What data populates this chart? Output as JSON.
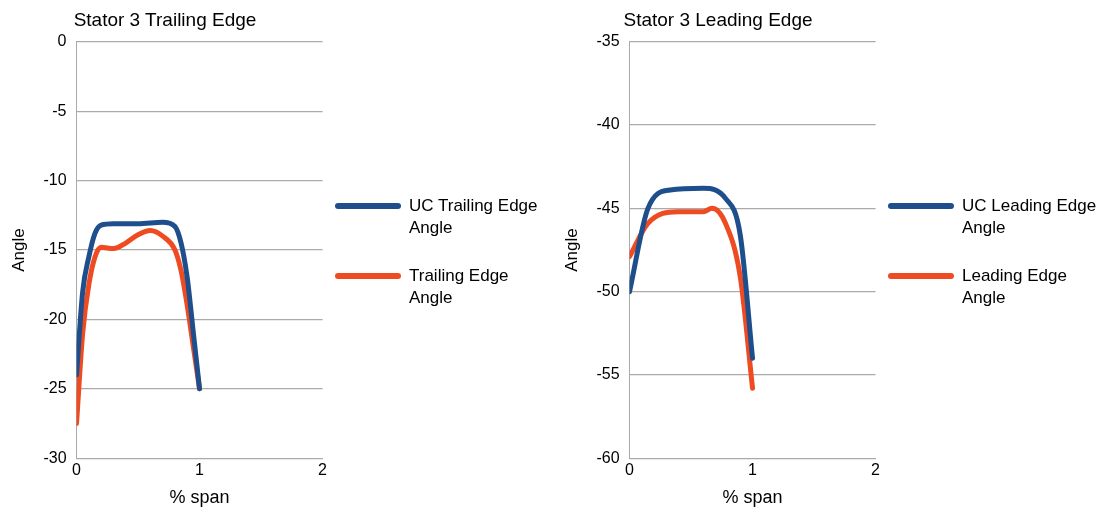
{
  "chart_data": [
    {
      "type": "line",
      "title": "Stator 3 Trailing Edge",
      "xlabel": "% span",
      "ylabel": "Angle",
      "xlim": [
        0,
        2
      ],
      "xticks": [
        0,
        1,
        2
      ],
      "ylim": [
        -30,
        0
      ],
      "yticks": [
        -30,
        -25,
        -20,
        -15,
        -10,
        -5,
        0
      ],
      "grid": "y",
      "legend": "right",
      "marker": "none",
      "series": [
        {
          "name": "UC Trailing Edge Angle",
          "color": "#1f4e8c",
          "x": [
            0,
            0.05,
            0.1,
            0.15,
            0.2,
            0.3,
            0.5,
            0.7,
            0.8,
            0.85,
            0.9,
            0.95,
            1
          ],
          "values": [
            -24,
            -18,
            -15.5,
            -13.8,
            -13.2,
            -13.1,
            -13.1,
            -13,
            -13.3,
            -14.5,
            -17,
            -21,
            -25
          ]
        },
        {
          "name": "Trailing Edge Angle",
          "color": "#ef4b23",
          "x": [
            0,
            0.05,
            0.1,
            0.15,
            0.2,
            0.3,
            0.4,
            0.5,
            0.6,
            0.7,
            0.8,
            0.85,
            0.9,
            0.95,
            1
          ],
          "values": [
            -27.5,
            -21,
            -17.5,
            -15.5,
            -14.8,
            -14.9,
            -14.5,
            -13.9,
            -13.6,
            -14,
            -15,
            -16.5,
            -19,
            -22,
            -25
          ]
        }
      ]
    },
    {
      "type": "line",
      "title": "Stator 3 Leading Edge",
      "xlabel": "% span",
      "ylabel": "Angle",
      "xlim": [
        0,
        2
      ],
      "xticks": [
        0,
        1,
        2
      ],
      "ylim": [
        -60,
        -35
      ],
      "yticks": [
        -60,
        -55,
        -50,
        -45,
        -40,
        -35
      ],
      "grid": "y",
      "legend": "right",
      "marker": "none",
      "series": [
        {
          "name": "UC Leading Edge Angle",
          "color": "#1f4e8c",
          "x": [
            0,
            0.15,
            0.33,
            0.6,
            0.78,
            0.9,
            1
          ],
          "values": [
            -50,
            -45,
            -43.9,
            -43.8,
            -44.4,
            -46.6,
            -54
          ]
        },
        {
          "name": "Leading Edge Angle",
          "color": "#ef4b23",
          "x": [
            0,
            0.15,
            0.39,
            0.6,
            0.67,
            0.78,
            0.9,
            1
          ],
          "values": [
            -47.9,
            -45.9,
            -45.2,
            -45.2,
            -45,
            -45.9,
            -49.1,
            -55.8
          ]
        }
      ]
    }
  ]
}
